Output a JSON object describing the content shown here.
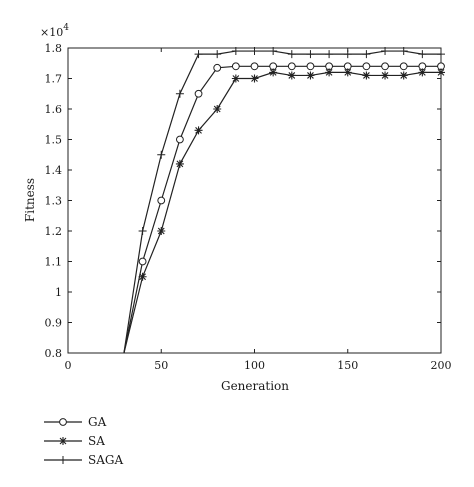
{
  "chart_data": {
    "type": "line",
    "xlabel": "Generation",
    "ylabel": "Fitness",
    "multiplier_base": "×10",
    "multiplier_exp": "4",
    "xlim": [
      0,
      200
    ],
    "ylim": [
      0.8,
      1.8
    ],
    "xticks": [
      0,
      50,
      100,
      150,
      200
    ],
    "yticks": [
      0.8,
      0.9,
      1,
      1.1,
      1.2,
      1.3,
      1.4,
      1.5,
      1.6,
      1.7,
      1.8
    ],
    "grid": false,
    "legend_position": "bottom-left",
    "series": [
      {
        "name": "GA",
        "marker": "circle",
        "x": [
          30,
          40,
          50,
          60,
          70,
          80,
          90,
          100,
          110,
          120,
          130,
          140,
          150,
          160,
          170,
          180,
          190,
          200
        ],
        "y": [
          0.8,
          1.1,
          1.3,
          1.5,
          1.65,
          1.735,
          1.74,
          1.74,
          1.74,
          1.74,
          1.74,
          1.74,
          1.74,
          1.74,
          1.74,
          1.74,
          1.74,
          1.74
        ]
      },
      {
        "name": "SA",
        "marker": "asterisk",
        "x": [
          30,
          40,
          50,
          60,
          70,
          80,
          90,
          100,
          110,
          120,
          130,
          140,
          150,
          160,
          170,
          180,
          190,
          200
        ],
        "y": [
          0.8,
          1.05,
          1.2,
          1.42,
          1.53,
          1.6,
          1.7,
          1.7,
          1.72,
          1.71,
          1.71,
          1.72,
          1.72,
          1.71,
          1.71,
          1.71,
          1.72,
          1.72
        ]
      },
      {
        "name": "SAGA",
        "marker": "plus",
        "x": [
          30,
          40,
          50,
          60,
          70,
          80,
          90,
          100,
          110,
          120,
          130,
          140,
          150,
          160,
          170,
          180,
          190,
          200
        ],
        "y": [
          0.8,
          1.2,
          1.45,
          1.65,
          1.78,
          1.78,
          1.79,
          1.79,
          1.79,
          1.78,
          1.78,
          1.78,
          1.78,
          1.78,
          1.79,
          1.79,
          1.78,
          1.78
        ]
      }
    ]
  }
}
